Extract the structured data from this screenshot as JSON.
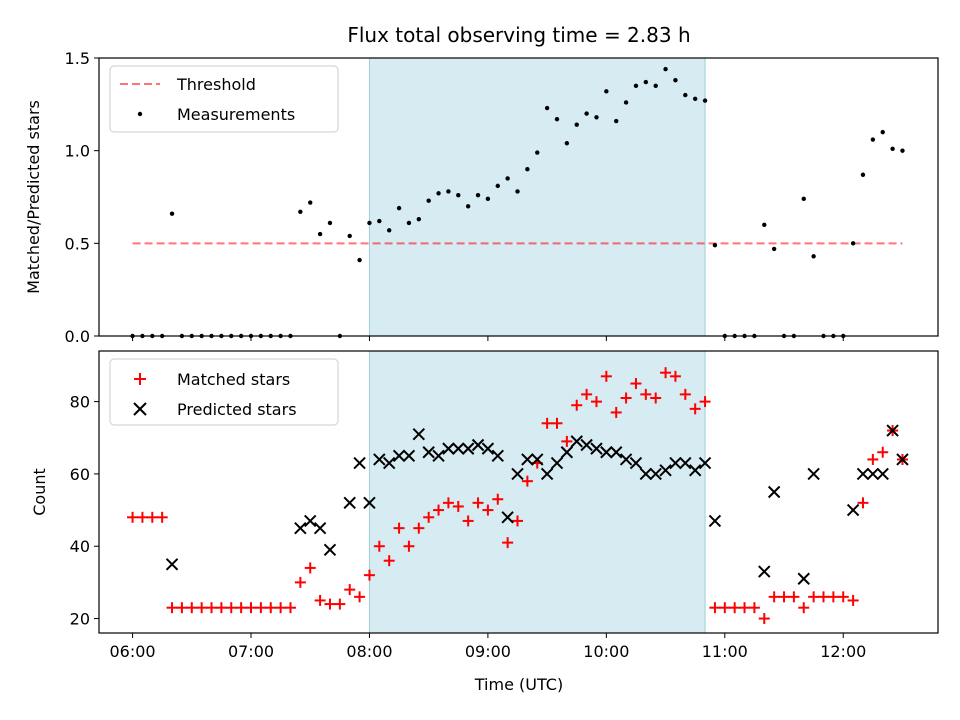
{
  "chart_data": {
    "type": "scatter",
    "title": "Flux total observing time = 2.83 h",
    "xlabel": "Time (UTC)",
    "x_ticks": [
      "06:00",
      "07:00",
      "08:00",
      "09:00",
      "10:00",
      "11:00",
      "12:00"
    ],
    "highlight_window": {
      "start": "08:00",
      "end": "10:50",
      "color": "#add8e6"
    },
    "panels": [
      {
        "id": "ratio",
        "ylabel": "Matched/Predicted stars",
        "ylim": [
          0,
          1.5
        ],
        "y_ticks": [
          0.0,
          0.5,
          1.0,
          1.5
        ],
        "y_tick_labels": [
          "0.0",
          "0.5",
          "1.0",
          "1.5"
        ],
        "legend": {
          "position": "top-left",
          "entries": [
            "Threshold",
            "Measurements"
          ]
        },
        "series": [
          {
            "name": "Threshold",
            "kind": "dashed-line",
            "color": "#ff0000",
            "points": [
              [
                "06:00",
                0.5
              ],
              [
                "12:30",
                0.5
              ]
            ]
          },
          {
            "name": "Measurements",
            "kind": "dot",
            "color": "#000000",
            "points": [
              [
                "06:00",
                0.0
              ],
              [
                "06:05",
                0.0
              ],
              [
                "06:10",
                0.0
              ],
              [
                "06:15",
                0.0
              ],
              [
                "06:20",
                0.66
              ],
              [
                "06:25",
                0.0
              ],
              [
                "06:30",
                0.0
              ],
              [
                "06:35",
                0.0
              ],
              [
                "06:40",
                0.0
              ],
              [
                "06:45",
                0.0
              ],
              [
                "06:50",
                0.0
              ],
              [
                "06:55",
                0.0
              ],
              [
                "07:00",
                0.0
              ],
              [
                "07:05",
                0.0
              ],
              [
                "07:10",
                0.0
              ],
              [
                "07:15",
                0.0
              ],
              [
                "07:20",
                0.0
              ],
              [
                "07:25",
                0.67
              ],
              [
                "07:30",
                0.72
              ],
              [
                "07:35",
                0.55
              ],
              [
                "07:40",
                0.61
              ],
              [
                "07:45",
                0.0
              ],
              [
                "07:50",
                0.54
              ],
              [
                "07:55",
                0.41
              ],
              [
                "08:00",
                0.61
              ],
              [
                "08:05",
                0.62
              ],
              [
                "08:10",
                0.57
              ],
              [
                "08:15",
                0.69
              ],
              [
                "08:20",
                0.61
              ],
              [
                "08:25",
                0.63
              ],
              [
                "08:30",
                0.73
              ],
              [
                "08:35",
                0.77
              ],
              [
                "08:40",
                0.78
              ],
              [
                "08:45",
                0.76
              ],
              [
                "08:50",
                0.7
              ],
              [
                "08:55",
                0.76
              ],
              [
                "09:00",
                0.74
              ],
              [
                "09:05",
                0.81
              ],
              [
                "09:10",
                0.85
              ],
              [
                "09:15",
                0.78
              ],
              [
                "09:20",
                0.9
              ],
              [
                "09:25",
                0.99
              ],
              [
                "09:30",
                1.23
              ],
              [
                "09:35",
                1.17
              ],
              [
                "09:40",
                1.04
              ],
              [
                "09:45",
                1.14
              ],
              [
                "09:50",
                1.2
              ],
              [
                "09:55",
                1.18
              ],
              [
                "10:00",
                1.32
              ],
              [
                "10:05",
                1.16
              ],
              [
                "10:10",
                1.26
              ],
              [
                "10:15",
                1.35
              ],
              [
                "10:20",
                1.37
              ],
              [
                "10:25",
                1.35
              ],
              [
                "10:30",
                1.44
              ],
              [
                "10:35",
                1.38
              ],
              [
                "10:40",
                1.3
              ],
              [
                "10:45",
                1.28
              ],
              [
                "10:50",
                1.27
              ],
              [
                "10:55",
                0.49
              ],
              [
                "11:00",
                0.0
              ],
              [
                "11:05",
                0.0
              ],
              [
                "11:10",
                0.0
              ],
              [
                "11:15",
                0.0
              ],
              [
                "11:20",
                0.6
              ],
              [
                "11:25",
                0.47
              ],
              [
                "11:30",
                0.0
              ],
              [
                "11:35",
                0.0
              ],
              [
                "11:40",
                0.74
              ],
              [
                "11:45",
                0.43
              ],
              [
                "11:50",
                0.0
              ],
              [
                "11:55",
                0.0
              ],
              [
                "12:00",
                0.0
              ],
              [
                "12:05",
                0.5
              ],
              [
                "12:10",
                0.87
              ],
              [
                "12:15",
                1.06
              ],
              [
                "12:20",
                1.1
              ],
              [
                "12:25",
                1.01
              ],
              [
                "12:30",
                1.0
              ]
            ]
          }
        ]
      },
      {
        "id": "count",
        "ylabel": "Count",
        "ylim": [
          16,
          94
        ],
        "y_ticks": [
          20,
          40,
          60,
          80
        ],
        "y_tick_labels": [
          "20",
          "40",
          "60",
          "80"
        ],
        "legend": {
          "position": "top-left",
          "entries": [
            "Matched stars",
            "Predicted stars"
          ]
        },
        "series": [
          {
            "name": "Matched stars",
            "kind": "plus",
            "color": "#ff0000",
            "points": [
              [
                "06:00",
                48
              ],
              [
                "06:05",
                48
              ],
              [
                "06:10",
                48
              ],
              [
                "06:15",
                48
              ],
              [
                "06:20",
                23
              ],
              [
                "06:25",
                23
              ],
              [
                "06:30",
                23
              ],
              [
                "06:35",
                23
              ],
              [
                "06:40",
                23
              ],
              [
                "06:45",
                23
              ],
              [
                "06:50",
                23
              ],
              [
                "06:55",
                23
              ],
              [
                "07:00",
                23
              ],
              [
                "07:05",
                23
              ],
              [
                "07:10",
                23
              ],
              [
                "07:15",
                23
              ],
              [
                "07:20",
                23
              ],
              [
                "07:25",
                30
              ],
              [
                "07:30",
                34
              ],
              [
                "07:35",
                25
              ],
              [
                "07:40",
                24
              ],
              [
                "07:45",
                24
              ],
              [
                "07:50",
                28
              ],
              [
                "07:55",
                26
              ],
              [
                "08:00",
                32
              ],
              [
                "08:05",
                40
              ],
              [
                "08:10",
                36
              ],
              [
                "08:15",
                45
              ],
              [
                "08:20",
                40
              ],
              [
                "08:25",
                45
              ],
              [
                "08:30",
                48
              ],
              [
                "08:35",
                50
              ],
              [
                "08:40",
                52
              ],
              [
                "08:45",
                51
              ],
              [
                "08:50",
                47
              ],
              [
                "08:55",
                52
              ],
              [
                "09:00",
                50
              ],
              [
                "09:05",
                53
              ],
              [
                "09:10",
                41
              ],
              [
                "09:15",
                47
              ],
              [
                "09:20",
                58
              ],
              [
                "09:25",
                63
              ],
              [
                "09:30",
                74
              ],
              [
                "09:35",
                74
              ],
              [
                "09:40",
                69
              ],
              [
                "09:45",
                79
              ],
              [
                "09:50",
                82
              ],
              [
                "09:55",
                80
              ],
              [
                "10:00",
                87
              ],
              [
                "10:05",
                77
              ],
              [
                "10:10",
                81
              ],
              [
                "10:15",
                85
              ],
              [
                "10:20",
                82
              ],
              [
                "10:25",
                81
              ],
              [
                "10:30",
                88
              ],
              [
                "10:35",
                87
              ],
              [
                "10:40",
                82
              ],
              [
                "10:45",
                78
              ],
              [
                "10:50",
                80
              ],
              [
                "10:55",
                23
              ],
              [
                "11:00",
                23
              ],
              [
                "11:05",
                23
              ],
              [
                "11:10",
                23
              ],
              [
                "11:15",
                23
              ],
              [
                "11:20",
                20
              ],
              [
                "11:25",
                26
              ],
              [
                "11:30",
                26
              ],
              [
                "11:35",
                26
              ],
              [
                "11:40",
                23
              ],
              [
                "11:45",
                26
              ],
              [
                "11:50",
                26
              ],
              [
                "11:55",
                26
              ],
              [
                "12:00",
                26
              ],
              [
                "12:05",
                25
              ],
              [
                "12:10",
                52
              ],
              [
                "12:15",
                64
              ],
              [
                "12:20",
                66
              ],
              [
                "12:25",
                72
              ],
              [
                "12:30",
                64
              ]
            ]
          },
          {
            "name": "Predicted stars",
            "kind": "cross",
            "color": "#000000",
            "points": [
              [
                "06:20",
                35
              ],
              [
                "07:25",
                45
              ],
              [
                "07:30",
                47
              ],
              [
                "07:35",
                45
              ],
              [
                "07:40",
                39
              ],
              [
                "07:50",
                52
              ],
              [
                "07:55",
                63
              ],
              [
                "08:00",
                52
              ],
              [
                "08:05",
                64
              ],
              [
                "08:10",
                63
              ],
              [
                "08:15",
                65
              ],
              [
                "08:20",
                65
              ],
              [
                "08:25",
                71
              ],
              [
                "08:30",
                66
              ],
              [
                "08:35",
                65
              ],
              [
                "08:40",
                67
              ],
              [
                "08:45",
                67
              ],
              [
                "08:50",
                67
              ],
              [
                "08:55",
                68
              ],
              [
                "09:00",
                67
              ],
              [
                "09:05",
                65
              ],
              [
                "09:10",
                48
              ],
              [
                "09:15",
                60
              ],
              [
                "09:20",
                64
              ],
              [
                "09:25",
                64
              ],
              [
                "09:30",
                60
              ],
              [
                "09:35",
                63
              ],
              [
                "09:40",
                66
              ],
              [
                "09:45",
                69
              ],
              [
                "09:50",
                68
              ],
              [
                "09:55",
                67
              ],
              [
                "10:00",
                66
              ],
              [
                "10:05",
                66
              ],
              [
                "10:10",
                64
              ],
              [
                "10:15",
                63
              ],
              [
                "10:20",
                60
              ],
              [
                "10:25",
                60
              ],
              [
                "10:30",
                61
              ],
              [
                "10:35",
                63
              ],
              [
                "10:40",
                63
              ],
              [
                "10:45",
                61
              ],
              [
                "10:50",
                63
              ],
              [
                "10:55",
                47
              ],
              [
                "11:20",
                33
              ],
              [
                "11:25",
                55
              ],
              [
                "11:40",
                31
              ],
              [
                "11:45",
                60
              ],
              [
                "12:05",
                50
              ],
              [
                "12:10",
                60
              ],
              [
                "12:15",
                60
              ],
              [
                "12:20",
                60
              ],
              [
                "12:25",
                72
              ],
              [
                "12:30",
                64
              ]
            ]
          }
        ]
      }
    ]
  }
}
